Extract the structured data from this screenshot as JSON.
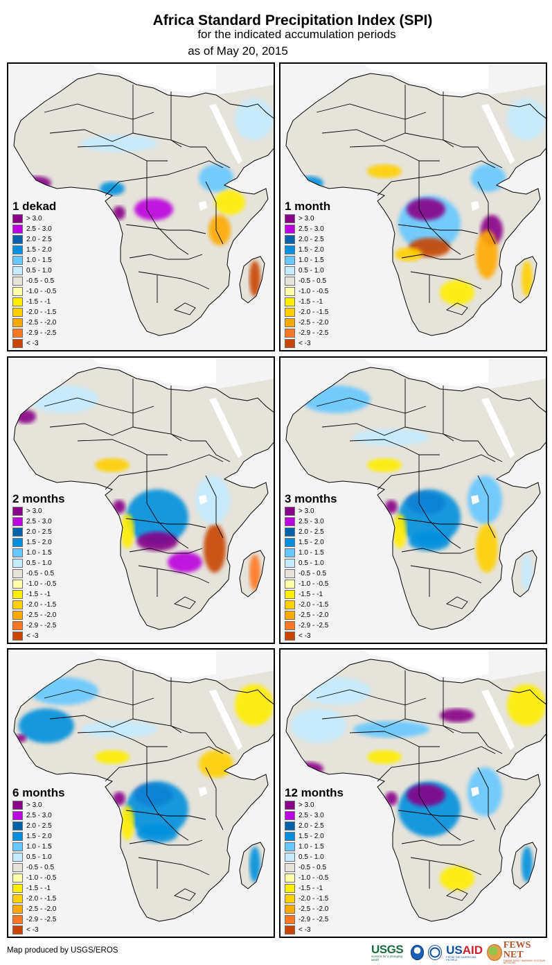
{
  "header": {
    "title": "Africa Standard Precipitation Index (SPI)",
    "subtitle": "for the indicated accumulation periods",
    "date_line": "as of May 20, 2015"
  },
  "colors": {
    "ocean": "#f4f4f4",
    "water_body": "#ffffff",
    "border": "#000000"
  },
  "legend_classes": [
    {
      "label": "> 3.0",
      "color": "#880088"
    },
    {
      "label": "2.5 - 3.0",
      "color": "#bb00dd"
    },
    {
      "label": "2.0 - 2.5",
      "color": "#0063aa"
    },
    {
      "label": "1.5 - 2.0",
      "color": "#0090dd"
    },
    {
      "label": "1.0 - 1.5",
      "color": "#66c8ff"
    },
    {
      "label": "0.5 - 1.0",
      "color": "#c4ebff"
    },
    {
      "label": "-0.5 - 0.5",
      "color": "#e6e3da"
    },
    {
      "label": "-1.0 - -0.5",
      "color": "#ffffaa"
    },
    {
      "label": "-1.5 - -1",
      "color": "#ffee00"
    },
    {
      "label": "-2.0 - -1.5",
      "color": "#ffd000"
    },
    {
      "label": "-2.5 - -2.0",
      "color": "#ffaa00"
    },
    {
      "label": "-2.9 - -2.5",
      "color": "#ff7722"
    },
    {
      "label": "< -3",
      "color": "#c84400"
    }
  ],
  "panels": [
    {
      "title": "1 dekad",
      "base_class": 6,
      "patches": [
        {
          "region": "guinea-coast-west",
          "class": 0
        },
        {
          "region": "gabon-congo",
          "class": 0
        },
        {
          "region": "central-congo",
          "class": 1
        },
        {
          "region": "sahel-central",
          "class": 5
        },
        {
          "region": "ethiopia",
          "class": 4
        },
        {
          "region": "kenya-somalia",
          "class": 8
        },
        {
          "region": "tanzania-coast",
          "class": 10
        },
        {
          "region": "madagascar-east",
          "class": 12
        },
        {
          "region": "nigeria-south",
          "class": 3
        },
        {
          "region": "arabia",
          "class": 5
        }
      ]
    },
    {
      "title": "1 month",
      "base_class": 6,
      "patches": [
        {
          "region": "guinea-coast-west",
          "class": 3
        },
        {
          "region": "nigeria-north",
          "class": 9
        },
        {
          "region": "congo-basin",
          "class": 4
        },
        {
          "region": "central-congo",
          "class": 0
        },
        {
          "region": "zambia-angola",
          "class": 12
        },
        {
          "region": "tanzania-coast",
          "class": 0
        },
        {
          "region": "mozambique",
          "class": 10
        },
        {
          "region": "angola-south",
          "class": 9
        },
        {
          "region": "south-africa-east",
          "class": 8
        },
        {
          "region": "madagascar-east",
          "class": 9
        },
        {
          "region": "ethiopia",
          "class": 4
        },
        {
          "region": "arabia",
          "class": 5
        }
      ]
    },
    {
      "title": "2 months",
      "base_class": 6,
      "patches": [
        {
          "region": "western-sahara",
          "class": 0
        },
        {
          "region": "north-africa-west",
          "class": 5
        },
        {
          "region": "nigeria-north",
          "class": 9
        },
        {
          "region": "congo-basin",
          "class": 3
        },
        {
          "region": "zambia-angola",
          "class": 0
        },
        {
          "region": "zimbabwe",
          "class": 1
        },
        {
          "region": "gabon-congo",
          "class": 0
        },
        {
          "region": "mozambique",
          "class": 12
        },
        {
          "region": "madagascar-east",
          "class": 11
        },
        {
          "region": "east-africa",
          "class": 5
        },
        {
          "region": "angola-coast",
          "class": 8
        }
      ]
    },
    {
      "title": "3 months",
      "base_class": 6,
      "patches": [
        {
          "region": "north-africa-west",
          "class": 4
        },
        {
          "region": "sahel-central",
          "class": 5
        },
        {
          "region": "central-congo",
          "class": 0
        },
        {
          "region": "congo-basin",
          "class": 3
        },
        {
          "region": "gabon-congo",
          "class": 0
        },
        {
          "region": "zambia-angola",
          "class": 3
        },
        {
          "region": "east-africa",
          "class": 4
        },
        {
          "region": "nigeria-north",
          "class": 8
        },
        {
          "region": "angola-coast",
          "class": 8
        },
        {
          "region": "mozambique",
          "class": 9
        },
        {
          "region": "madagascar-east",
          "class": 5
        }
      ]
    },
    {
      "title": "6 months",
      "base_class": 6,
      "patches": [
        {
          "region": "north-africa-west",
          "class": 4
        },
        {
          "region": "mauritania-mali",
          "class": 3
        },
        {
          "region": "senegal",
          "class": 0
        },
        {
          "region": "sahel-central",
          "class": 5
        },
        {
          "region": "central-congo",
          "class": 0
        },
        {
          "region": "congo-basin",
          "class": 3
        },
        {
          "region": "gabon-congo",
          "class": 0
        },
        {
          "region": "zambia-angola",
          "class": 3
        },
        {
          "region": "ethiopia",
          "class": 9
        },
        {
          "region": "nigeria-north",
          "class": 8
        },
        {
          "region": "angola-coast",
          "class": 8
        },
        {
          "region": "madagascar-east",
          "class": 3
        },
        {
          "region": "arabia",
          "class": 8
        }
      ]
    },
    {
      "title": "12 months",
      "base_class": 6,
      "patches": [
        {
          "region": "north-africa-west",
          "class": 5
        },
        {
          "region": "mauritania-mali",
          "class": 5
        },
        {
          "region": "guinea-coast-west",
          "class": 0
        },
        {
          "region": "sahel-central",
          "class": 4
        },
        {
          "region": "sudan",
          "class": 0
        },
        {
          "region": "congo-basin",
          "class": 3
        },
        {
          "region": "central-congo",
          "class": 0
        },
        {
          "region": "gabon-congo",
          "class": 0
        },
        {
          "region": "east-africa",
          "class": 4
        },
        {
          "region": "nigeria-north",
          "class": 8
        },
        {
          "region": "south-africa-east",
          "class": 8
        },
        {
          "region": "madagascar-east",
          "class": 3
        },
        {
          "region": "arabia",
          "class": 8
        }
      ]
    }
  ],
  "footer": {
    "credit": "Map produced by USGS/EROS",
    "logos": {
      "usgs": "USGS",
      "usgs_tagline": "science for a changing world",
      "usaid_us": "US",
      "usaid_aid": "AID",
      "usaid_tagline": "FROM THE AMERICAN PEOPLE",
      "fews": "FEWS NET",
      "fews_tagline": "FAMINE EARLY WARNING SYSTEMS NETWORK"
    }
  }
}
